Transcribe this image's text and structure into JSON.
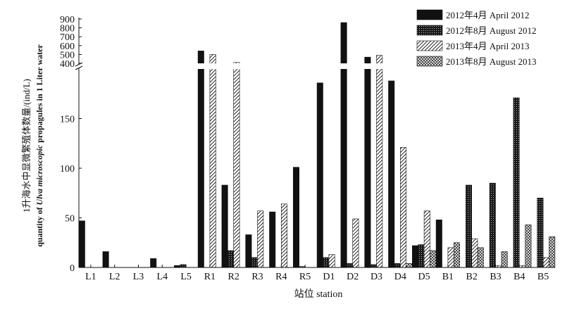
{
  "chart_data": {
    "type": "bar",
    "title": "",
    "xlabel": "站位 station",
    "ylabel_cn": "1升海水中显微繁殖体数量/(ind/L)",
    "ylabel_en_pre": "quantity of ",
    "ylabel_en_italic": "Ulva microscopic",
    "ylabel_en_post": " propagules in 1 Liter water",
    "y_axis": {
      "break": true,
      "lower_range": [
        0,
        200
      ],
      "lower_ticks": [
        0,
        50,
        100,
        150
      ],
      "upper_range": [
        400,
        900
      ],
      "upper_ticks": [
        400,
        500,
        600,
        700,
        800,
        900
      ]
    },
    "legend_position": "top-right",
    "categories": [
      "L1",
      "L2",
      "L3",
      "L4",
      "L5",
      "R1",
      "R2",
      "R3",
      "R4",
      "R5",
      "D1",
      "D2",
      "D3",
      "D4",
      "D5",
      "B1",
      "B2",
      "B3",
      "B4",
      "B5"
    ],
    "series": [
      {
        "name": "2012年4月 April 2012",
        "pattern": "solid",
        "values": [
          47,
          16,
          0,
          9,
          2,
          540,
          83,
          33,
          56,
          101,
          186,
          860,
          470,
          188,
          22,
          48,
          0,
          0,
          0,
          0
        ]
      },
      {
        "name": "2012年8月 August 2012",
        "pattern": "speckled",
        "values": [
          0,
          0,
          0,
          0,
          3,
          0,
          17,
          10,
          0,
          1,
          10,
          4,
          3,
          4,
          23,
          0,
          83,
          85,
          171,
          70
        ]
      },
      {
        "name": "2013年4月 April 2013",
        "pattern": "hatched",
        "values": [
          0,
          0,
          0,
          0,
          0,
          500,
          410,
          57,
          64,
          0,
          13,
          49,
          490,
          121,
          57,
          20,
          29,
          2,
          2,
          10
        ]
      },
      {
        "name": "2013年8月 August 2013",
        "pattern": "crosshatch",
        "values": [
          0,
          0,
          0,
          0,
          0,
          0,
          0,
          0,
          0,
          0,
          0,
          0,
          0,
          4,
          17,
          25,
          20,
          16,
          43,
          31
        ]
      }
    ]
  }
}
